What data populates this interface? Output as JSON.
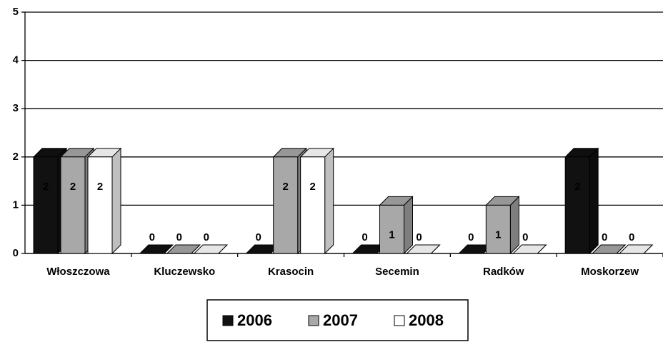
{
  "chart_data": {
    "type": "bar",
    "categories": [
      "Włoszczowa",
      "Kluczewsko",
      "Krasocin",
      "Secemin",
      "Radków",
      "Moskorzew"
    ],
    "series": [
      {
        "name": "2006",
        "color": "#111111",
        "values": [
          2,
          0,
          0,
          0,
          0,
          2
        ]
      },
      {
        "name": "2007",
        "color": "#a8a8a8",
        "values": [
          2,
          0,
          2,
          1,
          1,
          0
        ]
      },
      {
        "name": "2008",
        "color": "#ffffff",
        "values": [
          2,
          0,
          2,
          0,
          0,
          0
        ]
      }
    ],
    "ylim": [
      0,
      5
    ],
    "yticks": [
      0,
      1,
      2,
      3,
      4,
      5
    ],
    "grid": true,
    "legend": "bottom"
  }
}
